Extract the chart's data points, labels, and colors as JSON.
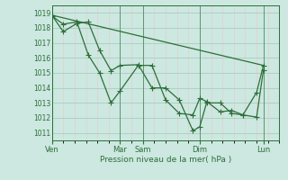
{
  "bg_color": "#cce8e0",
  "grid_color": "#aaccc0",
  "line_color": "#2d6e3a",
  "title": "Pression niveau de la mer( hPa )",
  "ylabel_values": [
    1011,
    1012,
    1013,
    1014,
    1015,
    1016,
    1017,
    1018,
    1019
  ],
  "ylim": [
    1010.5,
    1019.5
  ],
  "xlim": [
    0,
    100
  ],
  "xtick_labels": [
    "Ven",
    "Mar",
    "Sam",
    "Dim",
    "Lun"
  ],
  "xtick_positions": [
    0,
    30,
    40,
    65,
    93
  ],
  "vline_positions": [
    0,
    30,
    40,
    65,
    93
  ],
  "line1_x": [
    0,
    5,
    11,
    16,
    21,
    26,
    30,
    38,
    44,
    50,
    56,
    62,
    65,
    68,
    74,
    79,
    84,
    90,
    93
  ],
  "line1_y": [
    1018.85,
    1017.75,
    1018.3,
    1018.4,
    1016.5,
    1015.15,
    1015.5,
    1015.55,
    1014.0,
    1014.0,
    1013.2,
    1011.15,
    1011.4,
    1013.0,
    1013.0,
    1012.3,
    1012.2,
    1012.05,
    1015.2
  ],
  "line2_x": [
    0,
    5,
    11,
    16,
    21,
    26,
    30,
    38,
    44,
    50,
    56,
    62,
    65,
    68,
    74,
    79,
    84,
    90,
    93
  ],
  "line2_y": [
    1018.8,
    1018.25,
    1018.4,
    1016.2,
    1015.0,
    1013.0,
    1013.8,
    1015.5,
    1015.5,
    1013.2,
    1012.3,
    1012.2,
    1013.3,
    1013.1,
    1012.4,
    1012.5,
    1012.2,
    1013.7,
    1015.5
  ],
  "line3_x": [
    0,
    93
  ],
  "line3_y": [
    1018.85,
    1015.5
  ],
  "marker_style": "+",
  "marker_size": 4,
  "line_width": 0.9
}
